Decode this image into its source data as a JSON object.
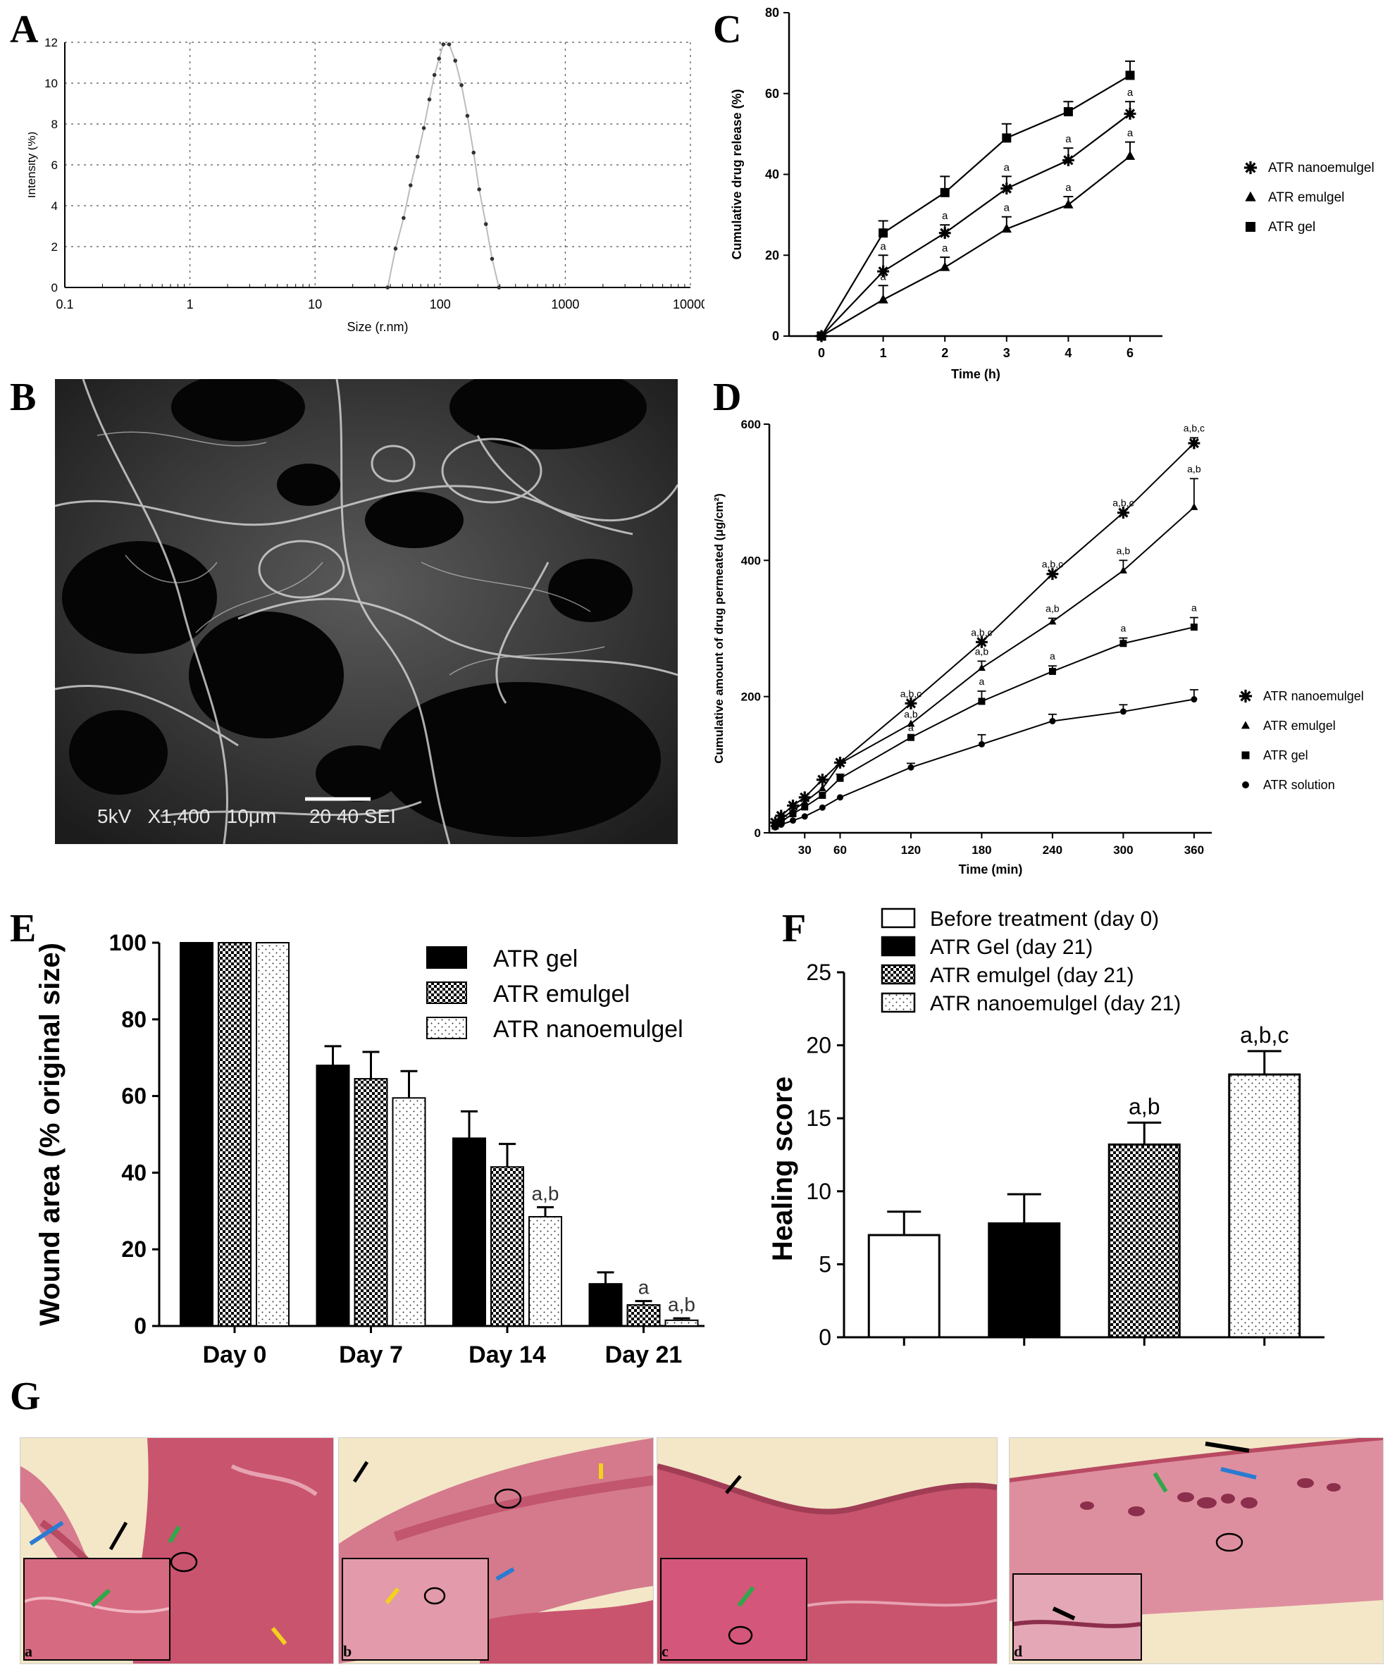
{
  "panel_letters": {
    "a": "A",
    "b": "B",
    "c": "C",
    "d": "D",
    "e": "E",
    "f": "F",
    "g": "G"
  },
  "colors": {
    "ink": "#000000",
    "tissue": "#c9546e",
    "tissue_light": "#e6a2b0",
    "background_slide": "#f3e7c8",
    "sem_dark": "#1a1a1a",
    "arrow_black": "#000000",
    "arrow_blue": "#2a7bd1",
    "arrow_green": "#2ea84a",
    "arrow_yellow": "#f2d21b"
  },
  "sem": {
    "caption": "5kV   X1,400   10μm      20 40 SEI"
  },
  "histology": {
    "panels": [
      {
        "label": "a"
      },
      {
        "label": "b"
      },
      {
        "label": "c"
      },
      {
        "label": "d"
      }
    ]
  },
  "chart_data": [
    {
      "id": "A",
      "type": "scatter",
      "title": "",
      "xlabel": "Size (r.nm)",
      "ylabel": "Intensity (%)",
      "xscale": "log",
      "xlim": [
        0.1,
        10000
      ],
      "ylim": [
        0,
        12
      ],
      "xticks": [
        {
          "v": 0.1,
          "label": "0.1"
        },
        {
          "v": 1,
          "label": "1"
        },
        {
          "v": 10,
          "label": "10"
        },
        {
          "v": 100,
          "label": "100"
        },
        {
          "v": 1000,
          "label": "1000"
        },
        {
          "v": 10000,
          "label": "10000"
        }
      ],
      "yticks": [
        0,
        2,
        4,
        6,
        8,
        10,
        12
      ],
      "grid": true,
      "x": [
        38,
        44,
        51,
        58,
        66,
        74,
        82,
        90,
        98,
        106,
        118,
        132,
        148,
        165,
        185,
        205,
        232,
        260,
        295
      ],
      "y": [
        0,
        1.9,
        3.4,
        5.0,
        6.4,
        7.8,
        9.2,
        10.4,
        11.2,
        11.9,
        11.9,
        11.1,
        9.9,
        8.4,
        6.6,
        4.8,
        3.1,
        1.4,
        0
      ]
    },
    {
      "id": "C",
      "type": "line",
      "title": "",
      "xlabel": "Time (h)",
      "ylabel": "Cumulative drug release (%)",
      "ylim": [
        0,
        80
      ],
      "yticks": [
        0,
        20,
        40,
        60,
        80
      ],
      "categories": [
        "0",
        "1",
        "2",
        "3",
        "4",
        "6"
      ],
      "legend": "right",
      "series": [
        {
          "name": "ATR nanoemulgel",
          "marker": "star",
          "values": [
            0,
            16,
            25.5,
            36.5,
            43.5,
            55
          ],
          "errors": [
            0,
            4,
            2,
            3,
            3,
            3
          ],
          "labels": [
            "",
            "a",
            "a",
            "a",
            "a",
            "a"
          ]
        },
        {
          "name": "ATR emulgel",
          "marker": "triangle",
          "values": [
            0,
            9,
            17,
            26.5,
            32.5,
            44.5
          ],
          "errors": [
            0,
            3.5,
            2.5,
            3,
            2,
            3.5
          ],
          "labels": [
            "",
            "a",
            "a",
            "a",
            "a",
            "a"
          ]
        },
        {
          "name": "ATR gel",
          "marker": "square",
          "values": [
            0,
            25.5,
            35.5,
            49,
            55.5,
            64.5
          ],
          "errors": [
            0,
            3,
            4,
            3.5,
            2.5,
            3.5
          ],
          "labels": [
            "",
            "",
            "",
            "",
            "",
            ""
          ]
        }
      ]
    },
    {
      "id": "D",
      "type": "line",
      "title": "",
      "xlabel": "Time (min)",
      "ylabel": "Cumulative amount of drug permeated (μg/cm²)",
      "xlim": [
        0,
        375
      ],
      "ylim": [
        0,
        600
      ],
      "xticks": [
        30,
        60,
        120,
        180,
        240,
        300,
        360
      ],
      "yticks": [
        0,
        200,
        400,
        600
      ],
      "legend": "right",
      "x": [
        5,
        10,
        20,
        30,
        45,
        60,
        120,
        180,
        240,
        300,
        360
      ],
      "series": [
        {
          "name": "ATR nanoemulgel",
          "marker": "star",
          "values": [
            15,
            25,
            40,
            52,
            78,
            103,
            190,
            280,
            380,
            470,
            572
          ],
          "errors": [
            0,
            0,
            0,
            0,
            0,
            0,
            0,
            0,
            0,
            0,
            8
          ],
          "labels": [
            "",
            "",
            "",
            "",
            "",
            "",
            "a,b,c",
            "a,b,c",
            "a,b,c",
            "a,b,c",
            "a,b,c"
          ]
        },
        {
          "name": "ATR emulgel",
          "marker": "triangle",
          "values": [
            12,
            20,
            33,
            45,
            65,
            102,
            160,
            242,
            310,
            385,
            478
          ],
          "errors": [
            0,
            0,
            0,
            0,
            0,
            0,
            0,
            10,
            5,
            15,
            42
          ],
          "labels": [
            "",
            "",
            "",
            "",
            "",
            "",
            "a,b",
            "a,b",
            "a,b",
            "a,b",
            "a,b"
          ]
        },
        {
          "name": "ATR gel",
          "marker": "square",
          "values": [
            10,
            16,
            28,
            38,
            55,
            80,
            140,
            193,
            237,
            278,
            302
          ],
          "errors": [
            0,
            0,
            0,
            0,
            0,
            6,
            0,
            15,
            8,
            8,
            14
          ],
          "labels": [
            "",
            "",
            "",
            "",
            "",
            "",
            "a",
            "a",
            "a",
            "a",
            "a"
          ]
        },
        {
          "name": "ATR solution",
          "marker": "circle",
          "values": [
            8,
            12,
            18,
            24,
            37,
            52,
            96,
            130,
            164,
            178,
            196
          ],
          "errors": [
            0,
            0,
            0,
            0,
            0,
            0,
            6,
            14,
            10,
            10,
            14
          ],
          "labels": [
            "",
            "",
            "",
            "",
            "",
            "",
            "",
            "",
            "",
            "",
            ""
          ]
        }
      ]
    },
    {
      "id": "E",
      "type": "bar",
      "title": "",
      "xlabel": "",
      "ylabel": "Wound area (% original size)",
      "ylim": [
        0,
        100
      ],
      "yticks": [
        0,
        20,
        40,
        60,
        80,
        100
      ],
      "categories": [
        "Day 0",
        "Day 7",
        "Day 14",
        "Day 21"
      ],
      "legend": "top-right",
      "series": [
        {
          "name": "ATR gel",
          "fill": "solid",
          "values": [
            100,
            68,
            49,
            11
          ],
          "errors": [
            0,
            5,
            7,
            3
          ],
          "labels": [
            "",
            "",
            "",
            ""
          ]
        },
        {
          "name": "ATR emulgel",
          "fill": "checker",
          "values": [
            100,
            64.5,
            41.5,
            5.5
          ],
          "errors": [
            0,
            7,
            6,
            1
          ],
          "labels": [
            "",
            "",
            "",
            "a"
          ]
        },
        {
          "name": "ATR nanoemulgel",
          "fill": "dots",
          "values": [
            100,
            59.5,
            28.5,
            1.5
          ],
          "errors": [
            0,
            7,
            2.5,
            0.5
          ],
          "labels": [
            "",
            "",
            "a,b",
            "a,b"
          ]
        }
      ]
    },
    {
      "id": "F",
      "type": "bar",
      "title": "",
      "xlabel": "",
      "ylabel": "Healing score",
      "ylim": [
        0,
        25
      ],
      "yticks": [
        0,
        5,
        10,
        15,
        20,
        25
      ],
      "categories": [
        "Before treatment (day 0)",
        "ATR Gel (day 21)",
        "ATR emulgel (day 21)",
        "ATR nanoemulgel (day 21)"
      ],
      "legend": "top-left",
      "series": [
        {
          "name": "Healing score",
          "values": [
            7,
            7.8,
            13.2,
            18
          ],
          "errors": [
            1.6,
            2,
            1.5,
            1.6
          ],
          "fills": [
            "open",
            "solid",
            "checker",
            "dots"
          ],
          "labels": [
            "",
            "",
            "a,b",
            "a,b,c"
          ]
        }
      ]
    }
  ]
}
